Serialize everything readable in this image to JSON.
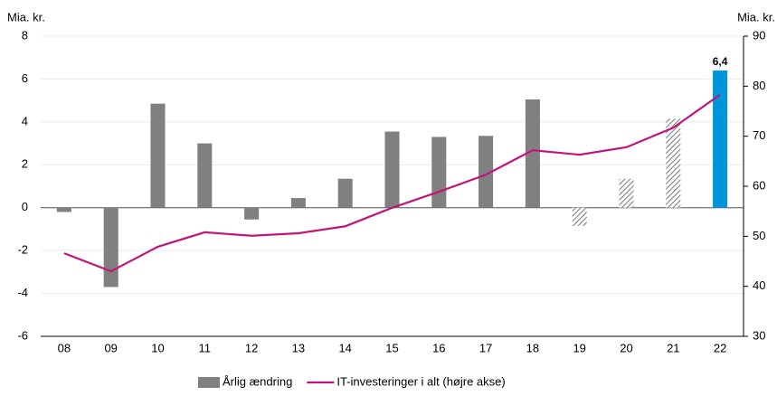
{
  "chart_data": {
    "type": "bar",
    "ylabel": "Mia. kr.",
    "y2label": "Mia. kr.",
    "categories": [
      "08",
      "09",
      "10",
      "11",
      "12",
      "13",
      "14",
      "15",
      "16",
      "17",
      "18",
      "19",
      "20",
      "21",
      "22"
    ],
    "series": [
      {
        "name": "Årlig ændring",
        "type": "bar",
        "color": "#808080",
        "values": [
          -0.2,
          -3.7,
          4.85,
          3.0,
          -0.55,
          0.45,
          1.35,
          3.55,
          3.3,
          3.35,
          5.05,
          -0.85,
          1.35,
          4.15,
          6.4
        ],
        "colors": [
          "#808080",
          "#808080",
          "#808080",
          "#808080",
          "#808080",
          "#808080",
          "#808080",
          "#808080",
          "#808080",
          "#808080",
          "#808080",
          "#808080",
          "#808080",
          "#808080",
          "#0095d9"
        ],
        "hatched": [
          false,
          false,
          false,
          false,
          false,
          false,
          false,
          false,
          false,
          false,
          false,
          true,
          true,
          true,
          false
        ],
        "value_labels": [
          null,
          null,
          null,
          null,
          null,
          null,
          null,
          null,
          null,
          null,
          null,
          null,
          null,
          null,
          "6,4"
        ]
      },
      {
        "name": "IT-investeringer i alt (højre akse)",
        "type": "line",
        "color": "#c0157a",
        "axis": "y2",
        "values": [
          46.6,
          43.0,
          47.9,
          50.8,
          50.1,
          50.6,
          52.0,
          55.7,
          58.9,
          62.3,
          67.2,
          66.3,
          67.8,
          71.7,
          78.3
        ]
      }
    ],
    "ylim": [
      -6,
      8
    ],
    "yticks": [
      -6,
      -4,
      -2,
      0,
      2,
      4,
      6,
      8
    ],
    "y2lim": [
      30,
      90
    ],
    "y2ticks": [
      30,
      40,
      50,
      60,
      70,
      80,
      90
    ],
    "grid": true,
    "legend": "bottom"
  }
}
